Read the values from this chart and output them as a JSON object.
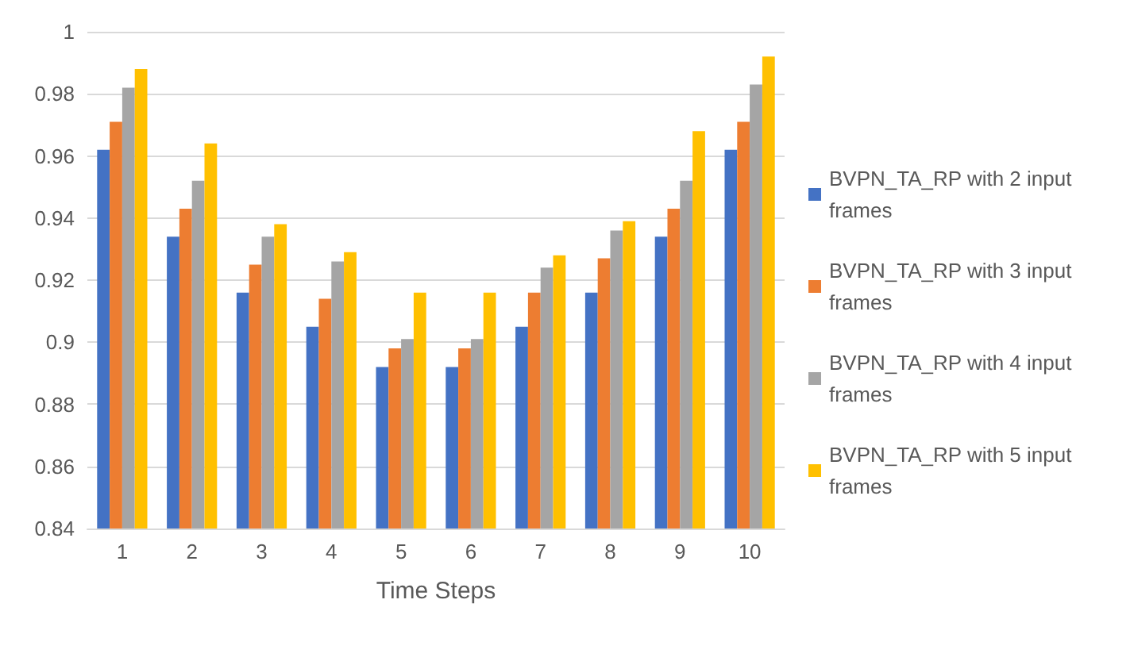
{
  "chart_data": {
    "type": "bar",
    "xlabel": "Time Steps",
    "categories": [
      "1",
      "2",
      "3",
      "4",
      "5",
      "6",
      "7",
      "8",
      "9",
      "10"
    ],
    "series": [
      {
        "name": "BVPN_TA_RP with 2 input frames",
        "color": "#4472c4",
        "values": [
          0.962,
          0.934,
          0.916,
          0.905,
          0.892,
          0.892,
          0.905,
          0.916,
          0.934,
          0.962
        ]
      },
      {
        "name": "BVPN_TA_RP with 3 input frames",
        "color": "#ed7d31",
        "values": [
          0.971,
          0.943,
          0.925,
          0.914,
          0.898,
          0.898,
          0.916,
          0.927,
          0.943,
          0.971
        ]
      },
      {
        "name": "BVPN_TA_RP with 4 input frames",
        "color": "#a5a5a5",
        "values": [
          0.982,
          0.952,
          0.934,
          0.926,
          0.901,
          0.901,
          0.924,
          0.936,
          0.952,
          0.983
        ]
      },
      {
        "name": "BVPN_TA_RP with 5 input frames",
        "color": "#ffc000",
        "values": [
          0.988,
          0.964,
          0.938,
          0.929,
          0.916,
          0.916,
          0.928,
          0.939,
          0.968,
          0.992
        ]
      }
    ],
    "ylim": [
      0.84,
      1
    ],
    "yticks": [
      0.84,
      0.86,
      0.88,
      0.9,
      0.92,
      0.94,
      0.96,
      0.98,
      1
    ],
    "grid": "y",
    "legend": "right"
  }
}
